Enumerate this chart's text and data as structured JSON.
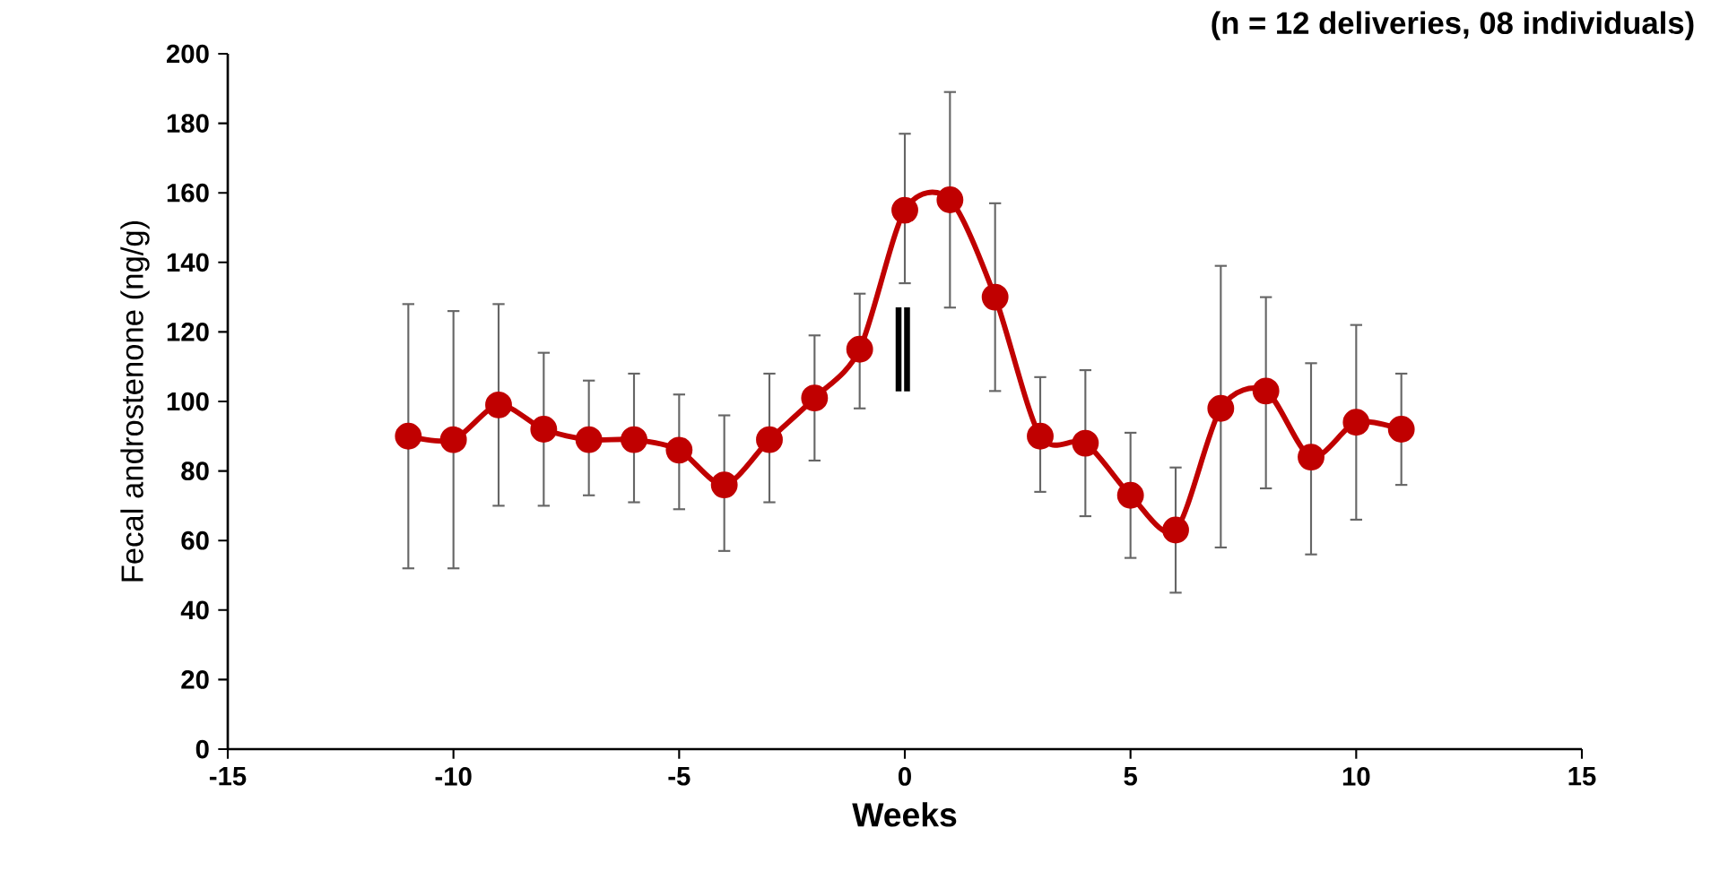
{
  "chart_data": {
    "type": "line",
    "xlabel": "Weeks",
    "ylabel": "Fecal androstenone (ng/g)",
    "annotations": [
      "(n = 12 deliveries, 08 individuals)",
      "‖"
    ],
    "x": [
      -11,
      -10,
      -9,
      -8,
      -7,
      -6,
      -5,
      -4,
      -3,
      -2,
      -1,
      0,
      1,
      2,
      3,
      4,
      5,
      6,
      7,
      8,
      9,
      10,
      11
    ],
    "series": [
      {
        "color": "#c00000",
        "values": [
          90,
          89,
          99,
          92,
          89,
          89,
          86,
          76,
          89,
          101,
          115,
          155,
          158,
          130,
          90,
          88,
          73,
          63,
          98,
          103,
          84,
          94,
          92
        ],
        "errors": [
          [
            52,
            128
          ],
          [
            52,
            126
          ],
          [
            70,
            128
          ],
          [
            70,
            114
          ],
          [
            73,
            106
          ],
          [
            71,
            108
          ],
          [
            69,
            102
          ],
          [
            57,
            96
          ],
          [
            71,
            108
          ],
          [
            83,
            119
          ],
          [
            98,
            131
          ],
          [
            134,
            177
          ],
          [
            127,
            189
          ],
          [
            103,
            157
          ],
          [
            74,
            107
          ],
          [
            67,
            109
          ],
          [
            55,
            91
          ],
          [
            45,
            81
          ],
          [
            58,
            139
          ],
          [
            75,
            130
          ],
          [
            56,
            111
          ],
          [
            66,
            122
          ],
          [
            76,
            108
          ]
        ]
      }
    ],
    "xlim": [
      -15,
      15
    ],
    "xticks": [
      -15,
      -10,
      -5,
      0,
      5,
      10,
      15
    ],
    "ylim": [
      0,
      200
    ],
    "yticks": [
      0,
      20,
      40,
      60,
      80,
      100,
      120,
      140,
      160,
      180,
      200
    ],
    "grid": false,
    "marker": "circle",
    "line_style": "solid"
  }
}
